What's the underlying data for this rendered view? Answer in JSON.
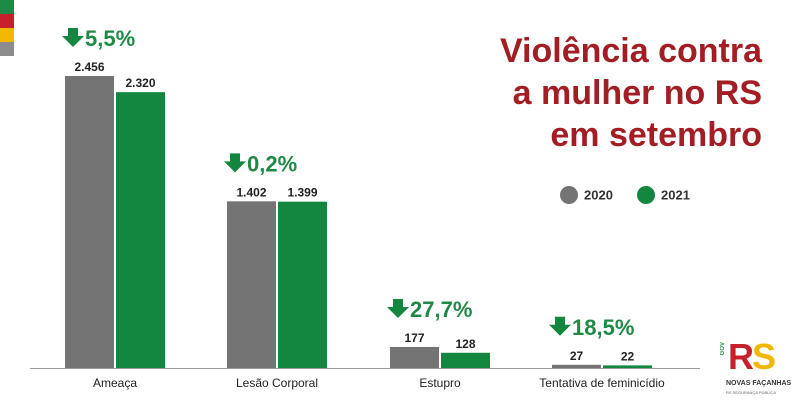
{
  "colors": {
    "c2020": "#747474",
    "c2021": "#13873f",
    "title": "#a31d24",
    "flag": [
      "#1f8a45",
      "#c8202a",
      "#f2b700",
      "#8c8c8c"
    ]
  },
  "title_lines": [
    "Violência contra",
    "a mulher no RS",
    "em setembro"
  ],
  "legend": [
    {
      "label": "2020",
      "color": "#747474"
    },
    {
      "label": "2021",
      "color": "#13873f"
    }
  ],
  "logo": {
    "mark_r": "R",
    "mark_s": "S",
    "vertical": "GOV",
    "line1": "NOVAS FAÇANHAS",
    "line2": "RS SEGURANÇA PÚBLICA"
  },
  "chart_data": {
    "type": "bar",
    "title": "Violência contra a mulher no RS em setembro",
    "categories": [
      "Ameaça",
      "Lesão Corporal",
      "Estupro",
      "Tentativa de feminicídio"
    ],
    "series": [
      {
        "name": "2020",
        "values": [
          2456,
          1402,
          177,
          27
        ],
        "labels": [
          "2.456",
          "1.402",
          "177",
          "27"
        ]
      },
      {
        "name": "2021",
        "values": [
          2320,
          1399,
          128,
          22
        ],
        "labels": [
          "2.320",
          "1.399",
          "128",
          "22"
        ]
      }
    ],
    "changes": [
      "5,5%",
      "0,2%",
      "27,7%",
      "18,5%"
    ],
    "change_direction": "down",
    "ylim": [
      0,
      2456
    ],
    "xlabel": "",
    "ylabel": ""
  }
}
